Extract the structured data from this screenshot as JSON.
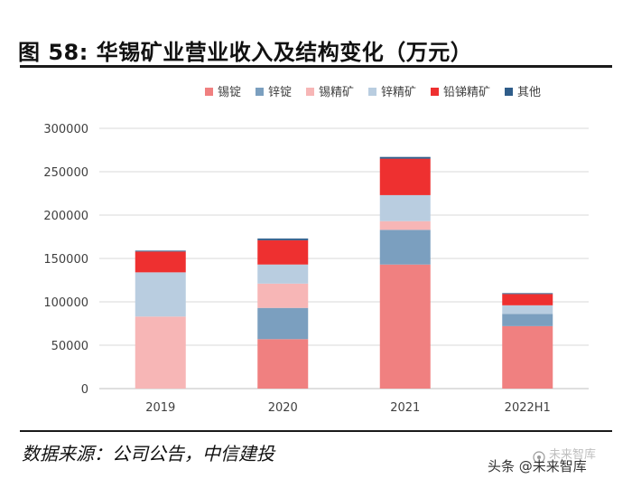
{
  "figure": {
    "title": "图 58: 华锡矿业营业收入及结构变化（万元）",
    "source": "数据来源：公司公告，中信建投",
    "watermark": "头条 @未来智库",
    "watermark_ghost": "未来智库"
  },
  "chart_data": {
    "type": "bar",
    "stacked": true,
    "title": "华锡矿业营业收入及结构变化（万元）",
    "categories": [
      "2019",
      "2020",
      "2021",
      "2022H1"
    ],
    "series": [
      {
        "name": "锡锭",
        "color": "#f08080",
        "values": [
          0,
          57000,
          143000,
          72000
        ]
      },
      {
        "name": "锌锭",
        "color": "#7b9fbf",
        "values": [
          0,
          36000,
          40000,
          14000
        ]
      },
      {
        "name": "锡精矿",
        "color": "#f7b6b6",
        "values": [
          83000,
          28000,
          10000,
          0
        ]
      },
      {
        "name": "锌精矿",
        "color": "#b9cde0",
        "values": [
          51000,
          22000,
          30000,
          10000
        ]
      },
      {
        "name": "铅锑精矿",
        "color": "#ee3030",
        "values": [
          24000,
          28000,
          42000,
          13000
        ]
      },
      {
        "name": "其他",
        "color": "#2f5d8a",
        "values": [
          1000,
          2000,
          2000,
          1000
        ]
      }
    ],
    "y_ticks": [
      "0",
      "50000",
      "100000",
      "150000",
      "200000",
      "250000",
      "300000"
    ],
    "ylim": [
      0,
      300000
    ],
    "xlabel": "",
    "ylabel": "",
    "legend_position": "top",
    "grid": true
  }
}
